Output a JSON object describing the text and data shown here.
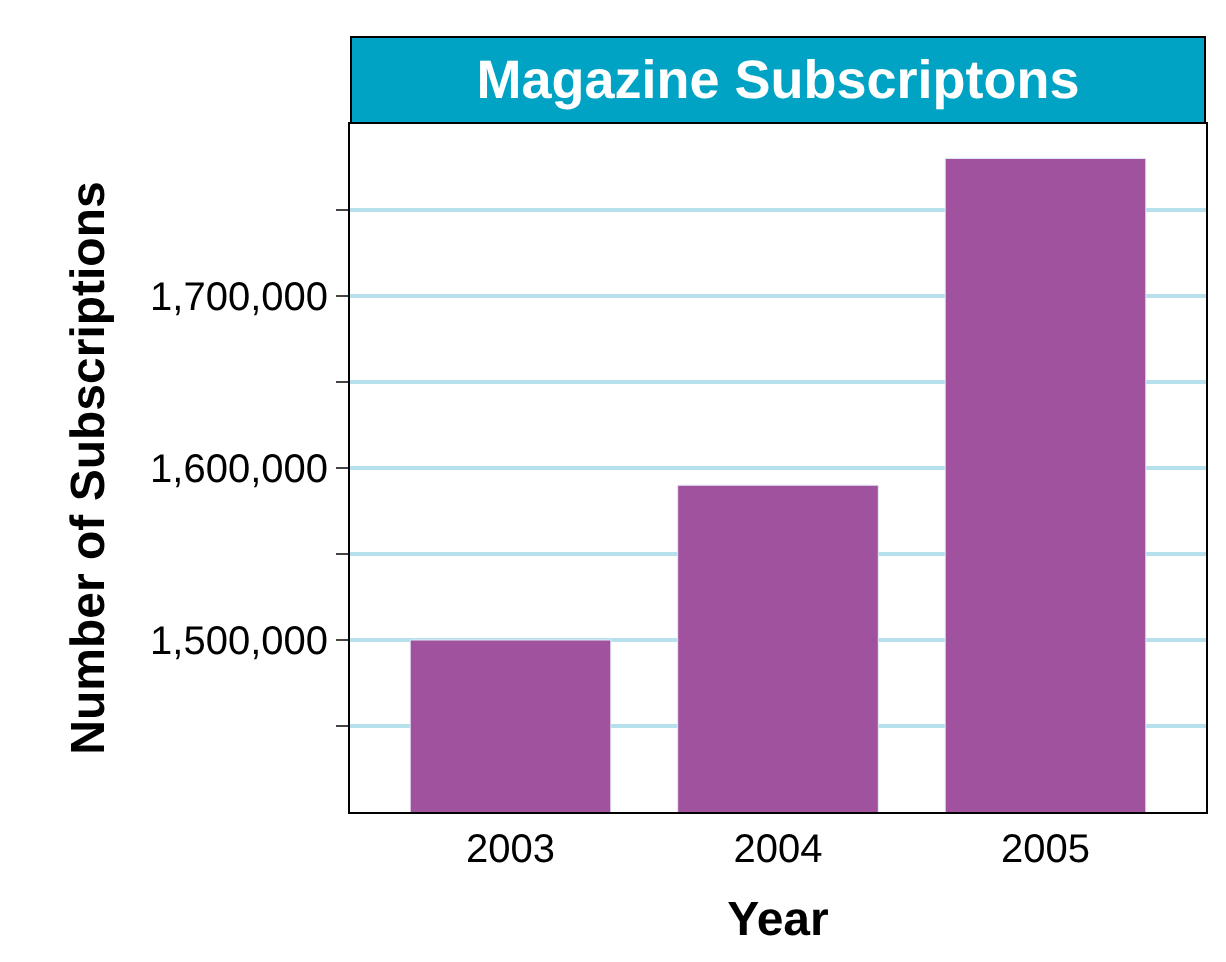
{
  "chart_data": {
    "type": "bar",
    "title": "Magazine Subscriptons",
    "xlabel": "Year",
    "ylabel": "Number of Subscriptions",
    "categories": [
      "2003",
      "2004",
      "2005"
    ],
    "values": [
      1500000,
      1590000,
      1780000
    ],
    "color": "#a0529f",
    "ylim": [
      1400000,
      1800000
    ],
    "yticks": [
      {
        "value": 1450000,
        "label": null
      },
      {
        "value": 1500000,
        "label": "1,500,000"
      },
      {
        "value": 1550000,
        "label": null
      },
      {
        "value": 1600000,
        "label": "1,600,000"
      },
      {
        "value": 1650000,
        "label": null
      },
      {
        "value": 1700000,
        "label": "1,700,000"
      },
      {
        "value": 1750000,
        "label": null
      }
    ],
    "grid": "y"
  }
}
